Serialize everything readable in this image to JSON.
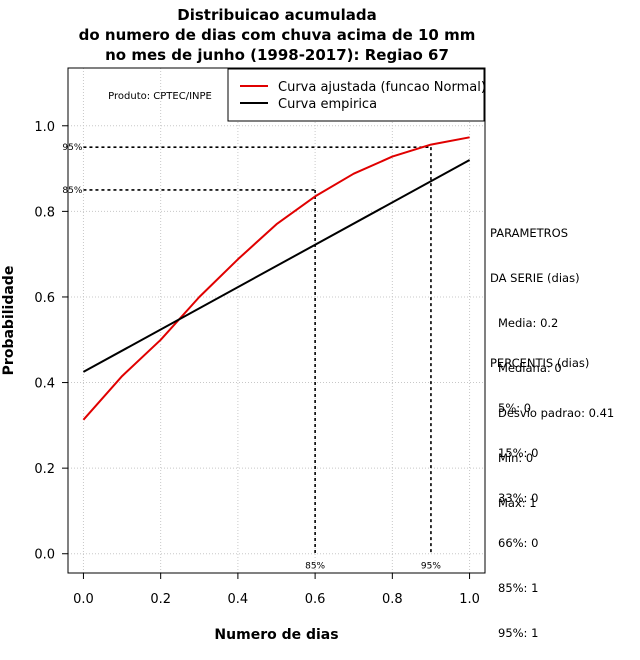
{
  "chart_data": {
    "type": "line",
    "title_lines": [
      "Distribuicao acumulada",
      "do numero de dias com chuva acima de 10 mm",
      "no mes de junho (1998-2017): Regiao 67"
    ],
    "xlabel": "Numero de dias",
    "ylabel": "Probabilidade",
    "xlim": [
      -0.04,
      1.04
    ],
    "ylim": [
      -0.045,
      1.135
    ],
    "x_ticks": [
      0.0,
      0.2,
      0.4,
      0.6,
      0.8,
      1.0
    ],
    "x_tick_labels": [
      "0.0",
      "0.2",
      "0.4",
      "0.6",
      "0.8",
      "1.0"
    ],
    "y_ticks": [
      0.0,
      0.2,
      0.4,
      0.6,
      0.8,
      1.0
    ],
    "y_tick_labels": [
      "0.0",
      "0.2",
      "0.4",
      "0.6",
      "0.8",
      "1.0"
    ],
    "grid": true,
    "legend_position": "top-right",
    "watermark": "Produto: CPTEC/INPE",
    "series": [
      {
        "name": "Curva ajustada (funcao Normal)",
        "color": "#e00000",
        "x": [
          0.0,
          0.1,
          0.2,
          0.3,
          0.4,
          0.5,
          0.6,
          0.7,
          0.8,
          0.9,
          1.0
        ],
        "y": [
          0.313,
          0.415,
          0.5,
          0.6,
          0.688,
          0.77,
          0.835,
          0.888,
          0.928,
          0.956,
          0.973
        ]
      },
      {
        "name": "Curva empirica",
        "color": "#000000",
        "x": [
          0.0,
          1.0
        ],
        "y": [
          0.425,
          0.92
        ]
      }
    ],
    "reference_lines": [
      {
        "label_y": "95%",
        "label_x": "95%",
        "x": 0.9,
        "y": 0.95
      },
      {
        "label_y": "85%",
        "label_x": "85%",
        "x": 0.6,
        "y": 0.85
      }
    ]
  },
  "side_panel": {
    "params_title_lines": [
      "PARAMETROS",
      "DA SERIE (dias)"
    ],
    "params": [
      "Media: 0.2",
      "Mediana: 0",
      "Desvio padrao: 0.41",
      "Min: 0",
      "Max: 1"
    ],
    "percentis_title": "PERCENTIS (dias)",
    "percentis": [
      "5%: 0",
      "15%: 0",
      "33%: 0",
      "66%: 0",
      "85%: 1",
      "95%: 1"
    ]
  }
}
